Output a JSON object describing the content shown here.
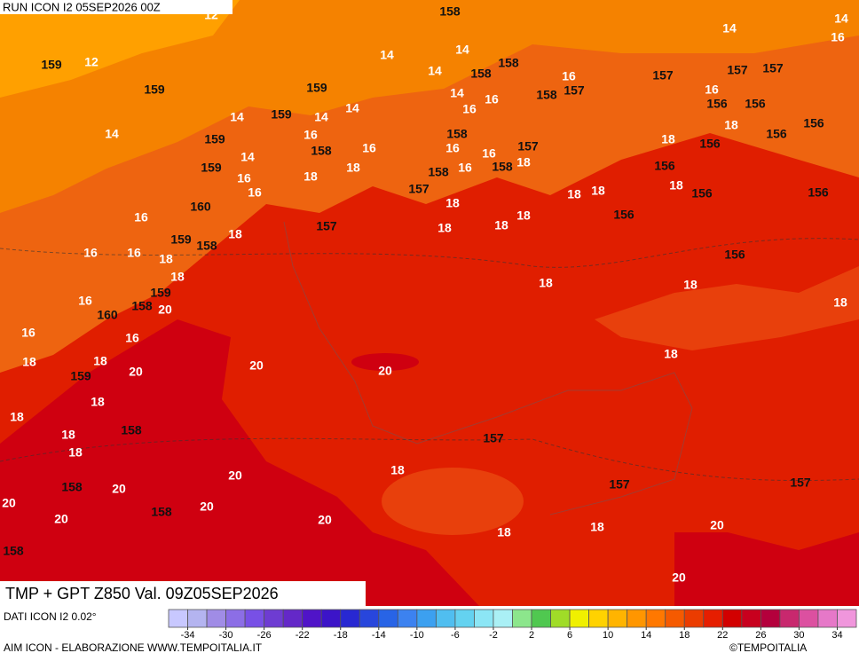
{
  "map": {
    "header": "RUN ICON I2 05SEP2026 00Z",
    "title": "TMP + GPT Z850 Val. 09Z05SEP2026",
    "source": "DATI ICON I2 0.02°",
    "credit": "AIM ICON - ELABORAZIONE WWW.TEMPOITALIA.IT",
    "copyright": "©TEMPOITALIA",
    "contour_labels": [
      12,
      158,
      14,
      14,
      16,
      159,
      12,
      14,
      14,
      14,
      158,
      158,
      16,
      157,
      157,
      157,
      159,
      159,
      14,
      16,
      16,
      158,
      157,
      16,
      156,
      156,
      14,
      14,
      159,
      14,
      14,
      158,
      18,
      156,
      156,
      159,
      16,
      158,
      16,
      16,
      16,
      157,
      18,
      156,
      14,
      159,
      18,
      16,
      158,
      158,
      18,
      156,
      16,
      16,
      18,
      157,
      18,
      18,
      18,
      156,
      156,
      160,
      16,
      18,
      18,
      156,
      157,
      18,
      18,
      18,
      159,
      158,
      16,
      16,
      18,
      156,
      18,
      18,
      18,
      159,
      16,
      158,
      20,
      18,
      160,
      16,
      16,
      18,
      18,
      20,
      20,
      20,
      18,
      159,
      18,
      18,
      158,
      18,
      18,
      157,
      18,
      20,
      158,
      20,
      157,
      157,
      20,
      20,
      158,
      20,
      20,
      20,
      18,
      18,
      158,
      20
    ]
  },
  "colorbar": {
    "range": [
      -36,
      36
    ],
    "ticks": [
      -34,
      -30,
      -26,
      -22,
      -18,
      -14,
      -10,
      -6,
      -2,
      2,
      6,
      10,
      14,
      18,
      22,
      26,
      30,
      34
    ],
    "colors": [
      "#c8c8ff",
      "#b4b4f0",
      "#a08ce6",
      "#8c6ee6",
      "#7850e6",
      "#6e3cd2",
      "#6428c8",
      "#5014c8",
      "#3c14c8",
      "#2828d2",
      "#2846dc",
      "#2864e6",
      "#3c82f0",
      "#3ca0f0",
      "#50bef0",
      "#64d2f0",
      "#8ce6f5",
      "#aaf0f5",
      "#8ce68c",
      "#50c850",
      "#a0dc28",
      "#f0f000",
      "#ffd200",
      "#ffb400",
      "#ff9600",
      "#ff7800",
      "#f55a00",
      "#eb3c00",
      "#e61e00",
      "#d20000",
      "#c8001e",
      "#b4003c",
      "#c8286e",
      "#dc50a0",
      "#e678c8",
      "#f096dc"
    ]
  }
}
